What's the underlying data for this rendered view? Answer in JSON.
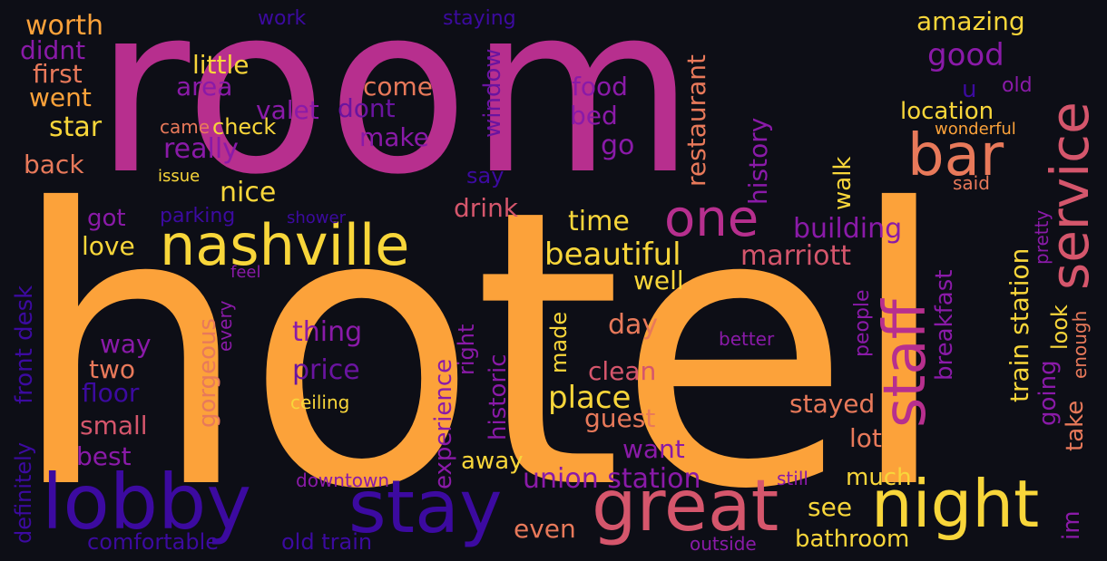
{
  "palette": {
    "background": "#0d0e16",
    "orange": "#fca23a",
    "magenta": "#b72f8e",
    "pink": "#d5566c",
    "salmon": "#e8795a",
    "yellow": "#f8d63a",
    "purple": "#6a14a0",
    "violet": "#8a1aa8",
    "indigo": "#3c0aa0"
  },
  "words": [
    {
      "text": "room",
      "color": "magenta"
    },
    {
      "text": "hotel",
      "color": "orange"
    },
    {
      "text": "nashville",
      "color": "yellow"
    },
    {
      "text": "lobby",
      "color": "indigo"
    },
    {
      "text": "stay",
      "color": "indigo"
    },
    {
      "text": "great",
      "color": "pink"
    },
    {
      "text": "night",
      "color": "yellow"
    },
    {
      "text": "staff",
      "color": "magenta"
    },
    {
      "text": "service",
      "color": "pink"
    },
    {
      "text": "bar",
      "color": "salmon"
    },
    {
      "text": "one",
      "color": "magenta"
    },
    {
      "text": "beautiful",
      "color": "yellow"
    },
    {
      "text": "marriott",
      "color": "pink"
    },
    {
      "text": "building",
      "color": "violet"
    },
    {
      "text": "place",
      "color": "yellow"
    },
    {
      "text": "union station",
      "color": "violet"
    },
    {
      "text": "train station",
      "color": "yellow"
    },
    {
      "text": "breakfast",
      "color": "violet"
    },
    {
      "text": "historic",
      "color": "violet"
    },
    {
      "text": "experience",
      "color": "violet"
    },
    {
      "text": "restaurant",
      "color": "salmon"
    },
    {
      "text": "history",
      "color": "violet"
    },
    {
      "text": "nice",
      "color": "yellow"
    },
    {
      "text": "really",
      "color": "violet"
    },
    {
      "text": "location",
      "color": "yellow"
    },
    {
      "text": "amazing",
      "color": "yellow"
    },
    {
      "text": "good",
      "color": "violet"
    },
    {
      "text": "bathroom",
      "color": "yellow"
    },
    {
      "text": "stayed",
      "color": "salmon"
    },
    {
      "text": "guest",
      "color": "salmon"
    },
    {
      "text": "clean",
      "color": "pink"
    },
    {
      "text": "day",
      "color": "salmon"
    },
    {
      "text": "time",
      "color": "yellow"
    },
    {
      "text": "drink",
      "color": "pink"
    },
    {
      "text": "thing",
      "color": "violet"
    },
    {
      "text": "price",
      "color": "purple"
    },
    {
      "text": "well",
      "color": "yellow"
    },
    {
      "text": "food",
      "color": "violet"
    },
    {
      "text": "bed",
      "color": "violet"
    },
    {
      "text": "go",
      "color": "violet"
    },
    {
      "text": "come",
      "color": "salmon"
    },
    {
      "text": "make",
      "color": "violet"
    },
    {
      "text": "dont",
      "color": "purple"
    },
    {
      "text": "window",
      "color": "purple"
    },
    {
      "text": "walk",
      "color": "yellow"
    },
    {
      "text": "worth",
      "color": "orange"
    },
    {
      "text": "didnt",
      "color": "violet"
    },
    {
      "text": "first",
      "color": "salmon"
    },
    {
      "text": "went",
      "color": "orange"
    },
    {
      "text": "star",
      "color": "yellow"
    },
    {
      "text": "back",
      "color": "salmon"
    },
    {
      "text": "little",
      "color": "yellow"
    },
    {
      "text": "area",
      "color": "violet"
    },
    {
      "text": "valet",
      "color": "violet"
    },
    {
      "text": "check",
      "color": "yellow"
    },
    {
      "text": "came",
      "color": "salmon"
    },
    {
      "text": "issue",
      "color": "yellow"
    },
    {
      "text": "got",
      "color": "violet"
    },
    {
      "text": "parking",
      "color": "indigo"
    },
    {
      "text": "shower",
      "color": "indigo"
    },
    {
      "text": "love",
      "color": "yellow"
    },
    {
      "text": "feel",
      "color": "violet"
    },
    {
      "text": "way",
      "color": "violet"
    },
    {
      "text": "two",
      "color": "salmon"
    },
    {
      "text": "floor",
      "color": "indigo"
    },
    {
      "text": "small",
      "color": "pink"
    },
    {
      "text": "best",
      "color": "violet"
    },
    {
      "text": "gorgeous",
      "color": "salmon"
    },
    {
      "text": "every",
      "color": "violet"
    },
    {
      "text": "ceiling",
      "color": "yellow"
    },
    {
      "text": "definitely",
      "color": "indigo"
    },
    {
      "text": "front desk",
      "color": "indigo"
    },
    {
      "text": "comfortable",
      "color": "indigo"
    },
    {
      "text": "old train",
      "color": "indigo"
    },
    {
      "text": "downtown",
      "color": "violet"
    },
    {
      "text": "right",
      "color": "violet"
    },
    {
      "text": "made",
      "color": "yellow"
    },
    {
      "text": "away",
      "color": "yellow"
    },
    {
      "text": "want",
      "color": "violet"
    },
    {
      "text": "even",
      "color": "salmon"
    },
    {
      "text": "much",
      "color": "yellow"
    },
    {
      "text": "see",
      "color": "yellow"
    },
    {
      "text": "lot",
      "color": "salmon"
    },
    {
      "text": "still",
      "color": "violet"
    },
    {
      "text": "outside",
      "color": "violet"
    },
    {
      "text": "better",
      "color": "violet"
    },
    {
      "text": "people",
      "color": "violet"
    },
    {
      "text": "pretty",
      "color": "violet"
    },
    {
      "text": "look",
      "color": "yellow"
    },
    {
      "text": "enough",
      "color": "salmon"
    },
    {
      "text": "going",
      "color": "violet"
    },
    {
      "text": "take",
      "color": "salmon"
    },
    {
      "text": "im",
      "color": "violet"
    },
    {
      "text": "said",
      "color": "salmon"
    },
    {
      "text": "wonderful",
      "color": "orange"
    },
    {
      "text": "old",
      "color": "violet"
    },
    {
      "text": "u",
      "color": "indigo"
    },
    {
      "text": "work",
      "color": "indigo"
    },
    {
      "text": "staying",
      "color": "indigo"
    },
    {
      "text": "say",
      "color": "indigo"
    }
  ]
}
